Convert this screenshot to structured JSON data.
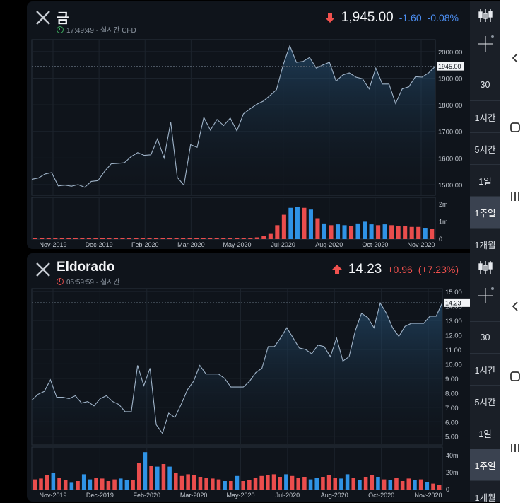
{
  "panels": [
    {
      "title": "금",
      "subline": "17:49:49 - 실시간 CFD",
      "price": "1,945.00",
      "change": "-1.60",
      "change_pct": "-0.08%",
      "direction": "down",
      "last_label": "1945.00",
      "x_ticks": [
        "Nov-2019",
        "Dec-2019",
        "Feb-2020",
        "Mar-2020",
        "May-2020",
        "Jul-2020",
        "Aug-2020",
        "Oct-2020",
        "Nov-2020"
      ],
      "y_ticks": [
        "2000.00",
        "1900.00",
        "1800.00",
        "1700.00",
        "1600.00",
        "1500.00"
      ],
      "vol_ticks": [
        "2m",
        "1m",
        "0"
      ]
    },
    {
      "title": "Eldorado",
      "subline": "05:59:59 - 실시간",
      "price": "14.23",
      "change": "+0.96",
      "change_pct": "(+7.23%)",
      "direction": "up",
      "last_label": "14.23",
      "x_ticks": [
        "Nov-2019",
        "Dec-2019",
        "Feb-2020",
        "Mar-2020",
        "May-2020",
        "Jul-2020",
        "Aug-2020",
        "Oct-2020",
        "Nov-2020"
      ],
      "y_ticks": [
        "15.00",
        "14.00",
        "13.00",
        "12.00",
        "11.00",
        "10.00",
        "9.00",
        "8.00",
        "7.00",
        "6.00",
        "5.00"
      ],
      "vol_ticks": [
        "40m",
        "20m",
        "0"
      ]
    }
  ],
  "sidebar": {
    "timeframes": [
      "30",
      "1시간",
      "5시간",
      "1일",
      "1주일",
      "1개월"
    ],
    "active": "1주일"
  },
  "colors": {
    "up_bar": "#2f93e6",
    "down_bar": "#ea4d4d",
    "line": "#9fb3c8",
    "down_arrow": "#f0514e",
    "up_arrow": "#f0514e"
  },
  "chart_data": [
    {
      "type": "area",
      "series": [
        {
          "values": [
            1520,
            1525,
            1540,
            1545,
            1495,
            1498,
            1494,
            1500,
            1490,
            1512,
            1515,
            1550,
            1578,
            1580,
            1582,
            1605,
            1620,
            1610,
            1612,
            1672,
            1600,
            1735,
            1527,
            1498,
            1650,
            1640,
            1753,
            1705,
            1745,
            1722,
            1750,
            1702,
            1766,
            1785,
            1802,
            1814,
            1835,
            1857,
            1950,
            2022,
            1960,
            1963,
            1978,
            1938,
            1950,
            1960,
            1889,
            1912,
            1920,
            1904,
            1898,
            1860,
            1938,
            1878,
            1878,
            1805,
            1860,
            1868,
            1906,
            1904,
            1920,
            1945
          ]
        }
      ],
      "volume": [
        {
          "v": 0.01,
          "up": false
        },
        {
          "v": 0.01,
          "up": false
        },
        {
          "v": 0.01,
          "up": false
        },
        {
          "v": 0.01,
          "up": false
        },
        {
          "v": 0.01,
          "up": false
        },
        {
          "v": 0.01,
          "up": false
        },
        {
          "v": 0.01,
          "up": false
        },
        {
          "v": 0.01,
          "up": false
        },
        {
          "v": 0.01,
          "up": false
        },
        {
          "v": 0.01,
          "up": false
        },
        {
          "v": 0.01,
          "up": false
        },
        {
          "v": 0.01,
          "up": false
        },
        {
          "v": 0.01,
          "up": false
        },
        {
          "v": 0.01,
          "up": false
        },
        {
          "v": 0.01,
          "up": false
        },
        {
          "v": 0.01,
          "up": false
        },
        {
          "v": 0.01,
          "up": false
        },
        {
          "v": 0.01,
          "up": false
        },
        {
          "v": 0.01,
          "up": false
        },
        {
          "v": 0.01,
          "up": false
        },
        {
          "v": 0.01,
          "up": false
        },
        {
          "v": 0.01,
          "up": false
        },
        {
          "v": 0.01,
          "up": false
        },
        {
          "v": 0.01,
          "up": false
        },
        {
          "v": 0.01,
          "up": false
        },
        {
          "v": 0.01,
          "up": false
        },
        {
          "v": 0.01,
          "up": false
        },
        {
          "v": 0.02,
          "up": false
        },
        {
          "v": 0.02,
          "up": false
        },
        {
          "v": 0.03,
          "up": false
        },
        {
          "v": 0.04,
          "up": false
        },
        {
          "v": 0.05,
          "up": false
        },
        {
          "v": 0.06,
          "up": false
        },
        {
          "v": 0.1,
          "up": false
        },
        {
          "v": 0.2,
          "up": false
        },
        {
          "v": 0.3,
          "up": false
        },
        {
          "v": 0.8,
          "up": false
        },
        {
          "v": 1.4,
          "up": false
        },
        {
          "v": 1.8,
          "up": true
        },
        {
          "v": 1.85,
          "up": true
        },
        {
          "v": 1.8,
          "up": false
        },
        {
          "v": 1.7,
          "up": true
        },
        {
          "v": 1.2,
          "up": false
        },
        {
          "v": 0.9,
          "up": true
        },
        {
          "v": 0.8,
          "up": false
        },
        {
          "v": 0.85,
          "up": true
        },
        {
          "v": 0.8,
          "up": true
        },
        {
          "v": 0.75,
          "up": false
        },
        {
          "v": 0.9,
          "up": true
        },
        {
          "v": 1.0,
          "up": true
        },
        {
          "v": 0.85,
          "up": true
        },
        {
          "v": 0.8,
          "up": false
        },
        {
          "v": 0.85,
          "up": true
        },
        {
          "v": 0.8,
          "up": false
        },
        {
          "v": 0.75,
          "up": false
        },
        {
          "v": 0.75,
          "up": false
        },
        {
          "v": 0.7,
          "up": false
        },
        {
          "v": 0.7,
          "up": false
        },
        {
          "v": 0.65,
          "up": true
        },
        {
          "v": 0.6,
          "up": false
        }
      ],
      "ylim": [
        1460,
        2045
      ],
      "vol_max": 2.4,
      "last_value": 1945
    },
    {
      "type": "area",
      "series": [
        {
          "values": [
            7.5,
            7.9,
            8.1,
            8.9,
            7.7,
            7.7,
            7.6,
            7.8,
            7.3,
            7.4,
            7.1,
            7.6,
            7.8,
            7.4,
            7.2,
            6.7,
            6.7,
            9.9,
            8.5,
            9.7,
            5.8,
            5.2,
            6.6,
            6.3,
            7.2,
            8.2,
            8.8,
            9.9,
            9.3,
            9.3,
            9.3,
            9.0,
            8.4,
            8.4,
            8.4,
            8.8,
            9.4,
            9.7,
            11.2,
            11.2,
            11.8,
            12.5,
            11.8,
            11.1,
            11.0,
            10.7,
            11.3,
            11.2,
            10.5,
            11.8,
            10.2,
            10.5,
            12.3,
            13.5,
            13.2,
            12.5,
            14.2,
            13.5,
            12.5,
            11.9,
            12.6,
            12.8,
            12.8,
            12.8,
            13.3,
            13.3,
            14.23
          ]
        }
      ],
      "volume": [
        {
          "v": 12,
          "up": false
        },
        {
          "v": 13,
          "up": false
        },
        {
          "v": 17,
          "up": false
        },
        {
          "v": 20,
          "up": true
        },
        {
          "v": 14,
          "up": false
        },
        {
          "v": 11,
          "up": false
        },
        {
          "v": 8,
          "up": true
        },
        {
          "v": 10,
          "up": false
        },
        {
          "v": 18,
          "up": true
        },
        {
          "v": 12,
          "up": true
        },
        {
          "v": 14,
          "up": false
        },
        {
          "v": 13,
          "up": false
        },
        {
          "v": 10,
          "up": false
        },
        {
          "v": 12,
          "up": false
        },
        {
          "v": 13,
          "up": true
        },
        {
          "v": 11,
          "up": true
        },
        {
          "v": 11,
          "up": false
        },
        {
          "v": 31,
          "up": false
        },
        {
          "v": 44,
          "up": true
        },
        {
          "v": 28,
          "up": false
        },
        {
          "v": 27,
          "up": true
        },
        {
          "v": 30,
          "up": false
        },
        {
          "v": 27,
          "up": true
        },
        {
          "v": 20,
          "up": false
        },
        {
          "v": 16,
          "up": false
        },
        {
          "v": 18,
          "up": false
        },
        {
          "v": 17,
          "up": false
        },
        {
          "v": 15,
          "up": false
        },
        {
          "v": 14,
          "up": false
        },
        {
          "v": 13,
          "up": false
        },
        {
          "v": 12,
          "up": false
        },
        {
          "v": 10,
          "up": true
        },
        {
          "v": 10,
          "up": false
        },
        {
          "v": 16,
          "up": true
        },
        {
          "v": 10,
          "up": false
        },
        {
          "v": 11,
          "up": false
        },
        {
          "v": 14,
          "up": false
        },
        {
          "v": 16,
          "up": false
        },
        {
          "v": 17,
          "up": false
        },
        {
          "v": 18,
          "up": false
        },
        {
          "v": 15,
          "up": false
        },
        {
          "v": 18,
          "up": true
        },
        {
          "v": 16,
          "up": false
        },
        {
          "v": 14,
          "up": false
        },
        {
          "v": 15,
          "up": false
        },
        {
          "v": 12,
          "up": true
        },
        {
          "v": 14,
          "up": true
        },
        {
          "v": 15,
          "up": false
        },
        {
          "v": 17,
          "up": false
        },
        {
          "v": 14,
          "up": false
        },
        {
          "v": 13,
          "up": true
        },
        {
          "v": 18,
          "up": true
        },
        {
          "v": 14,
          "up": false
        },
        {
          "v": 11,
          "up": true
        },
        {
          "v": 15,
          "up": false
        },
        {
          "v": 17,
          "up": false
        },
        {
          "v": 15,
          "up": true
        },
        {
          "v": 12,
          "up": false
        },
        {
          "v": 11,
          "up": true
        },
        {
          "v": 14,
          "up": false
        },
        {
          "v": 10,
          "up": false
        },
        {
          "v": 13,
          "up": false
        },
        {
          "v": 11,
          "up": true
        },
        {
          "v": 12,
          "up": false
        },
        {
          "v": 9,
          "up": true
        },
        {
          "v": 7,
          "up": false
        },
        {
          "v": 5,
          "up": false
        }
      ],
      "ylim": [
        4.4,
        15.2
      ],
      "vol_max": 50,
      "last_value": 14.23
    }
  ]
}
